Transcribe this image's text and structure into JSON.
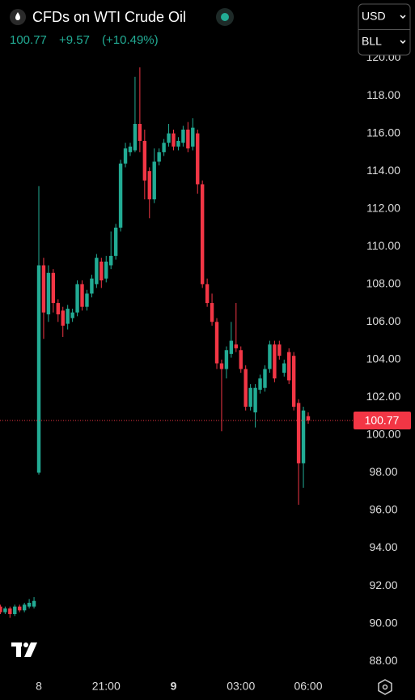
{
  "header": {
    "title": "CFDs on WTI Crude Oil",
    "price": "100.77",
    "change": "+9.57",
    "change_pct": "(+10.49%)",
    "currency": "USD",
    "unit": "BLL"
  },
  "chart_data": {
    "type": "candlestick",
    "categories": [
      null,
      null,
      null,
      null,
      null,
      null,
      null,
      null,
      "8",
      null,
      null,
      null,
      null,
      null,
      null,
      null,
      null,
      null,
      null,
      null,
      null,
      null,
      "21:00",
      null,
      null,
      null,
      null,
      null,
      null,
      null,
      null,
      null,
      null,
      null,
      null,
      null,
      "9",
      null,
      null,
      null,
      null,
      null,
      null,
      null,
      null,
      null,
      null,
      null,
      null,
      null,
      "03:00",
      null,
      null,
      null,
      null,
      null,
      null,
      null,
      null,
      null,
      null,
      null,
      null,
      null,
      "06:00"
    ],
    "open": [
      90.9,
      90.6,
      90.8,
      90.5,
      90.9,
      90.7,
      90.9,
      90.9,
      98.0,
      109.0,
      106.4,
      108.6,
      107.0,
      106.6,
      105.9,
      106.2,
      106.5,
      108.0,
      106.8,
      107.5,
      108.0,
      109.2,
      108.3,
      109.0,
      109.5,
      111.0,
      114.4,
      115.0,
      115.1,
      116.5,
      115.6,
      114.0,
      112.5,
      114.5,
      115.0,
      115.5,
      116.0,
      115.3,
      115.5,
      116.2,
      115.3,
      116.0,
      113.3,
      108.0,
      107.0,
      106.0,
      103.8,
      103.5,
      104.3,
      104.8,
      104.5,
      103.5,
      101.5,
      101.2,
      102.4,
      102.5,
      103.5,
      104.8,
      104.8,
      103.3,
      104.4,
      104.2,
      101.7,
      98.5,
      101.0
    ],
    "high": [
      91.0,
      90.9,
      90.9,
      91.0,
      91.0,
      91.1,
      91.3,
      91.4,
      113.2,
      109.4,
      109.0,
      108.8,
      107.2,
      106.8,
      106.9,
      106.7,
      108.2,
      108.2,
      107.7,
      108.5,
      109.6,
      109.4,
      109.5,
      110.8,
      111.2,
      114.6,
      115.5,
      115.5,
      119.0,
      119.5,
      116.2,
      114.2,
      115.2,
      115.2,
      115.7,
      116.5,
      116.2,
      115.8,
      116.4,
      116.6,
      116.8,
      116.2,
      113.5,
      108.3,
      107.5,
      106.2,
      104.0,
      104.7,
      106.0,
      107.0,
      104.7,
      103.7,
      102.7,
      102.7,
      103.2,
      103.7,
      105.0,
      105.0,
      105.0,
      104.0,
      104.6,
      104.4,
      101.9,
      101.5,
      101.2
    ],
    "low": [
      90.5,
      90.5,
      90.3,
      90.4,
      90.6,
      90.6,
      90.8,
      90.8,
      97.9,
      105.1,
      106.0,
      106.5,
      106.0,
      105.2,
      105.6,
      106.0,
      106.3,
      106.6,
      106.6,
      107.3,
      107.8,
      107.8,
      108.1,
      108.8,
      109.3,
      110.8,
      114.2,
      114.8,
      115.0,
      115.0,
      112.5,
      111.5,
      112.3,
      114.3,
      114.8,
      115.3,
      115.1,
      115.1,
      115.3,
      115.0,
      115.1,
      112.8,
      107.8,
      106.8,
      105.8,
      103.5,
      100.2,
      103.0,
      104.1,
      104.4,
      103.3,
      101.3,
      101.3,
      100.4,
      102.2,
      102.3,
      103.3,
      102.8,
      104.0,
      103.1,
      102.7,
      101.3,
      96.3,
      97.2,
      100.6
    ],
    "close": [
      90.6,
      90.8,
      90.5,
      90.9,
      90.7,
      91.0,
      91.1,
      91.2,
      109.0,
      106.5,
      108.6,
      107.0,
      106.4,
      105.8,
      106.7,
      106.5,
      108.0,
      106.8,
      107.5,
      108.3,
      109.4,
      108.2,
      109.2,
      109.5,
      111.0,
      114.4,
      115.2,
      115.3,
      116.5,
      115.6,
      113.5,
      112.5,
      114.5,
      115.0,
      115.5,
      116.0,
      115.3,
      115.6,
      116.2,
      115.2,
      116.3,
      113.3,
      108.0,
      107.0,
      106.0,
      103.8,
      103.5,
      104.5,
      105.0,
      104.6,
      103.5,
      101.5,
      102.5,
      102.5,
      103.0,
      103.5,
      104.8,
      103.0,
      104.2,
      103.8,
      102.9,
      101.5,
      98.5,
      101.3,
      100.77
    ],
    "up_color": "#22ab94",
    "down_color": "#f23645",
    "ylim": [
      87.19,
      120.41
    ],
    "yticks": [
      {
        "value": 88,
        "label": "88.00"
      },
      {
        "value": 90,
        "label": "90.00"
      },
      {
        "value": 92,
        "label": "92.00"
      },
      {
        "value": 94,
        "label": "94.00"
      },
      {
        "value": 96,
        "label": "96.00"
      },
      {
        "value": 98,
        "label": "98.00"
      },
      {
        "value": 100,
        "label": "100.00"
      },
      {
        "value": 102,
        "label": "102.00"
      },
      {
        "value": 104,
        "label": "104.00"
      },
      {
        "value": 106,
        "label": "106.00"
      },
      {
        "value": 108,
        "label": "108.00"
      },
      {
        "value": 110,
        "label": "110.00"
      },
      {
        "value": 112,
        "label": "112.00"
      },
      {
        "value": 114,
        "label": "114.00"
      },
      {
        "value": 116,
        "label": "116.00"
      },
      {
        "value": 118,
        "label": "118.00"
      },
      {
        "value": 120,
        "label": "120.00"
      }
    ]
  }
}
